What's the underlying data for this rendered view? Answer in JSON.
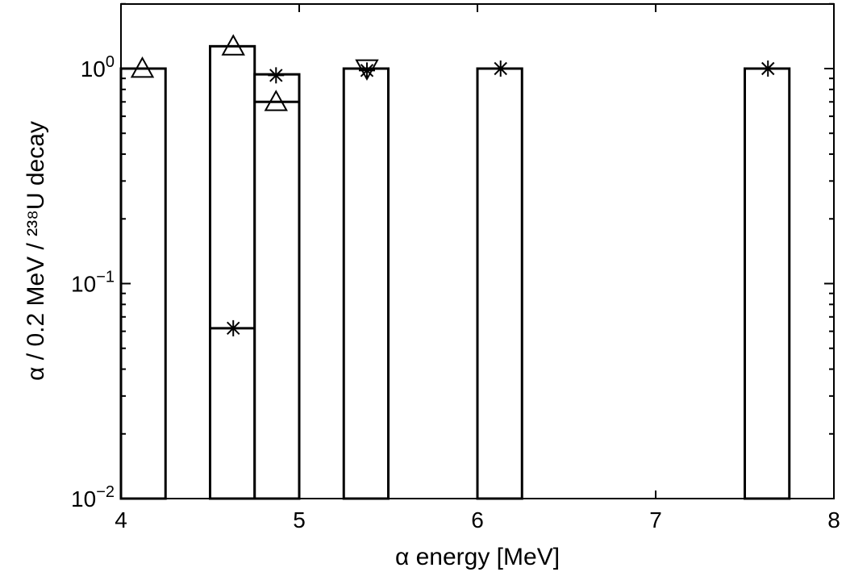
{
  "chart_data": {
    "type": "bar",
    "title": "",
    "xlabel": "α energy [MeV]",
    "ylabel": "α / 0.2 MeV / ²³⁸U decay",
    "yscale": "log",
    "xlim": [
      4,
      8
    ],
    "ylim": [
      0.01,
      2
    ],
    "grid": false,
    "xticks": [
      {
        "value": 4,
        "label": "4"
      },
      {
        "value": 5,
        "label": "5"
      },
      {
        "value": 6,
        "label": "6"
      },
      {
        "value": 7,
        "label": "7"
      },
      {
        "value": 8,
        "label": "8"
      }
    ],
    "yticks": [
      {
        "value": 0.01,
        "base": "10",
        "exp": "−2"
      },
      {
        "value": 0.1,
        "base": "10",
        "exp": "−1"
      },
      {
        "value": 1,
        "base": "10",
        "exp": "0"
      }
    ],
    "bars": [
      {
        "x0": 4.0,
        "x1": 4.25,
        "value": 1.0
      },
      {
        "x0": 4.5,
        "x1": 4.75,
        "value": 1.27
      },
      {
        "x0": 4.75,
        "x1": 5.0,
        "value": 0.94
      },
      {
        "x0": 5.25,
        "x1": 5.5,
        "value": 1.0
      },
      {
        "x0": 6.0,
        "x1": 6.25,
        "value": 1.0
      },
      {
        "x0": 7.5,
        "x1": 7.75,
        "value": 1.0
      }
    ],
    "inner_lines": [
      {
        "x0": 4.5,
        "x1": 4.75,
        "value": 0.062
      },
      {
        "x0": 4.75,
        "x1": 5.0,
        "value": 0.7
      }
    ],
    "markers": [
      {
        "shape": "triangle-up",
        "x": 4.12,
        "y": 1.0
      },
      {
        "shape": "triangle-up",
        "x": 4.63,
        "y": 1.27
      },
      {
        "shape": "asterisk",
        "x": 4.63,
        "y": 0.062
      },
      {
        "shape": "asterisk",
        "x": 4.87,
        "y": 0.93
      },
      {
        "shape": "triangle-up",
        "x": 4.87,
        "y": 0.7
      },
      {
        "shape": "triangle-down",
        "x": 5.38,
        "y": 1.0
      },
      {
        "shape": "asterisk",
        "x": 5.38,
        "y": 0.98
      },
      {
        "shape": "asterisk",
        "x": 6.13,
        "y": 1.0
      },
      {
        "shape": "asterisk",
        "x": 7.63,
        "y": 1.0
      }
    ]
  }
}
